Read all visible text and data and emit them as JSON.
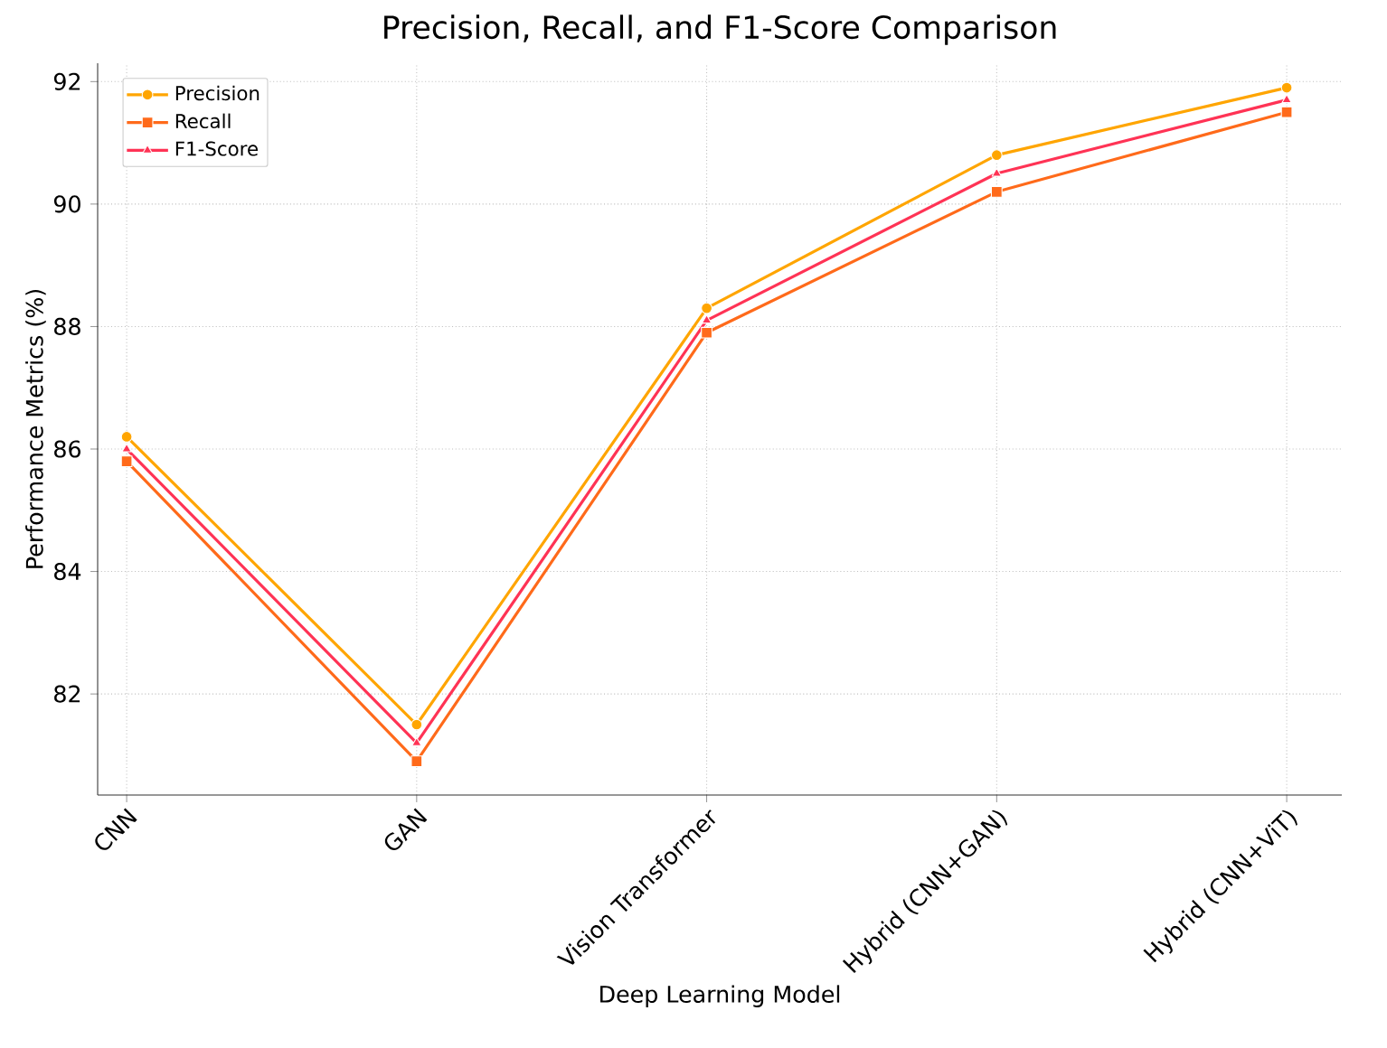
{
  "chart_data": {
    "type": "line",
    "title": "Precision, Recall, and F1-Score Comparison",
    "xlabel": "Deep Learning Model",
    "ylabel": "Performance Metrics (%)",
    "categories": [
      "CNN",
      "GAN",
      "Vision Transformer",
      "Hybrid (CNN+GAN)",
      "Hybrid (CNN+ViT)"
    ],
    "series": [
      {
        "name": "Precision",
        "color": "#ffa500",
        "marker": "circle",
        "values": [
          86.2,
          81.5,
          88.3,
          90.8,
          91.9
        ]
      },
      {
        "name": "Recall",
        "color": "#ff6a1a",
        "marker": "square",
        "values": [
          85.8,
          80.9,
          87.9,
          90.2,
          91.5
        ]
      },
      {
        "name": "F1-Score",
        "color": "#ff3355",
        "marker": "triangle",
        "values": [
          86.0,
          81.2,
          88.1,
          90.5,
          91.7
        ]
      }
    ],
    "ylim": [
      80.35,
      92.3
    ],
    "yticks": [
      82,
      84,
      86,
      88,
      90,
      92
    ],
    "grid": true,
    "legend": "top left",
    "line_style": "solid"
  }
}
